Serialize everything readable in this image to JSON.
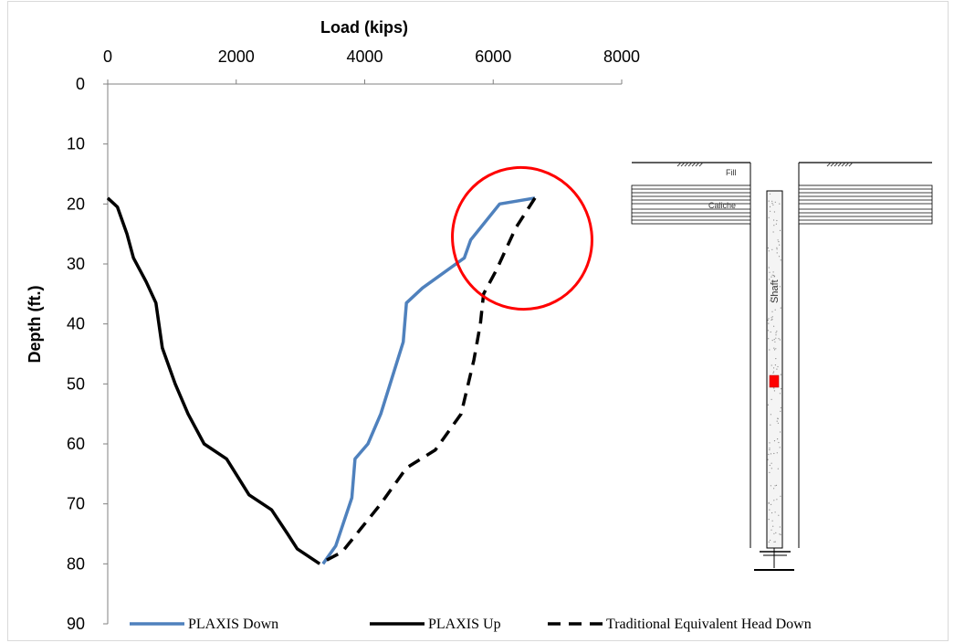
{
  "chart_data": {
    "type": "line",
    "xlabel": "Load (kips)",
    "ylabel": "Depth (ft.)",
    "xlim": [
      0,
      8000
    ],
    "ylim": [
      0,
      90
    ],
    "x_axis_position": "top",
    "y_inverted": true,
    "x_ticks": [
      "0",
      "2000",
      "4000",
      "6000",
      "8000"
    ],
    "y_ticks": [
      "0",
      "10",
      "20",
      "30",
      "40",
      "50",
      "60",
      "70",
      "80",
      "90"
    ],
    "grid": false,
    "legend_position": "bottom",
    "series": [
      {
        "name": "PLAXIS Down",
        "color": "#4f81bd",
        "style": "solid",
        "points": [
          [
            6650,
            19
          ],
          [
            6100,
            20
          ],
          [
            5650,
            26
          ],
          [
            5550,
            29
          ],
          [
            4900,
            34
          ],
          [
            4650,
            36.5
          ],
          [
            4600,
            43
          ],
          [
            4250,
            55
          ],
          [
            4050,
            60
          ],
          [
            3850,
            62.5
          ],
          [
            3800,
            69
          ],
          [
            3550,
            77
          ],
          [
            3350,
            80
          ]
        ]
      },
      {
        "name": "PLAXIS Up",
        "color": "#000000",
        "style": "solid",
        "points": [
          [
            0,
            19
          ],
          [
            150,
            20.5
          ],
          [
            300,
            25
          ],
          [
            400,
            29
          ],
          [
            600,
            33
          ],
          [
            750,
            36.5
          ],
          [
            850,
            44
          ],
          [
            1050,
            50
          ],
          [
            1250,
            55
          ],
          [
            1500,
            60
          ],
          [
            1850,
            62.5
          ],
          [
            2200,
            68.5
          ],
          [
            2550,
            71
          ],
          [
            2800,
            75
          ],
          [
            2950,
            77.5
          ],
          [
            3300,
            80
          ]
        ]
      },
      {
        "name": "Traditional Equivalent Head Down",
        "color": "#000000",
        "style": "dashed",
        "points": [
          [
            6650,
            19
          ],
          [
            6350,
            24
          ],
          [
            6050,
            31
          ],
          [
            5850,
            35
          ],
          [
            5800,
            40
          ],
          [
            5700,
            46
          ],
          [
            5500,
            55
          ],
          [
            5100,
            61
          ],
          [
            4650,
            64
          ],
          [
            4250,
            70
          ],
          [
            3950,
            74
          ],
          [
            3650,
            78
          ],
          [
            3300,
            80
          ]
        ]
      }
    ],
    "annotations": [
      {
        "type": "ellipse",
        "color": "#ff0000",
        "description": "highlight around curve divergence"
      },
      {
        "type": "inset-diagram",
        "labels": [
          "Fill",
          "Caliche",
          "Shaft"
        ]
      }
    ]
  },
  "inset": {
    "fill_label": "Fill",
    "caliche_label": "Caliche",
    "shaft_label": "Shaft",
    "marker_color": "#ff0000"
  },
  "colors": {
    "plaxis_down": "#4f81bd",
    "plaxis_up": "#000000",
    "highlight": "#ff0000"
  }
}
